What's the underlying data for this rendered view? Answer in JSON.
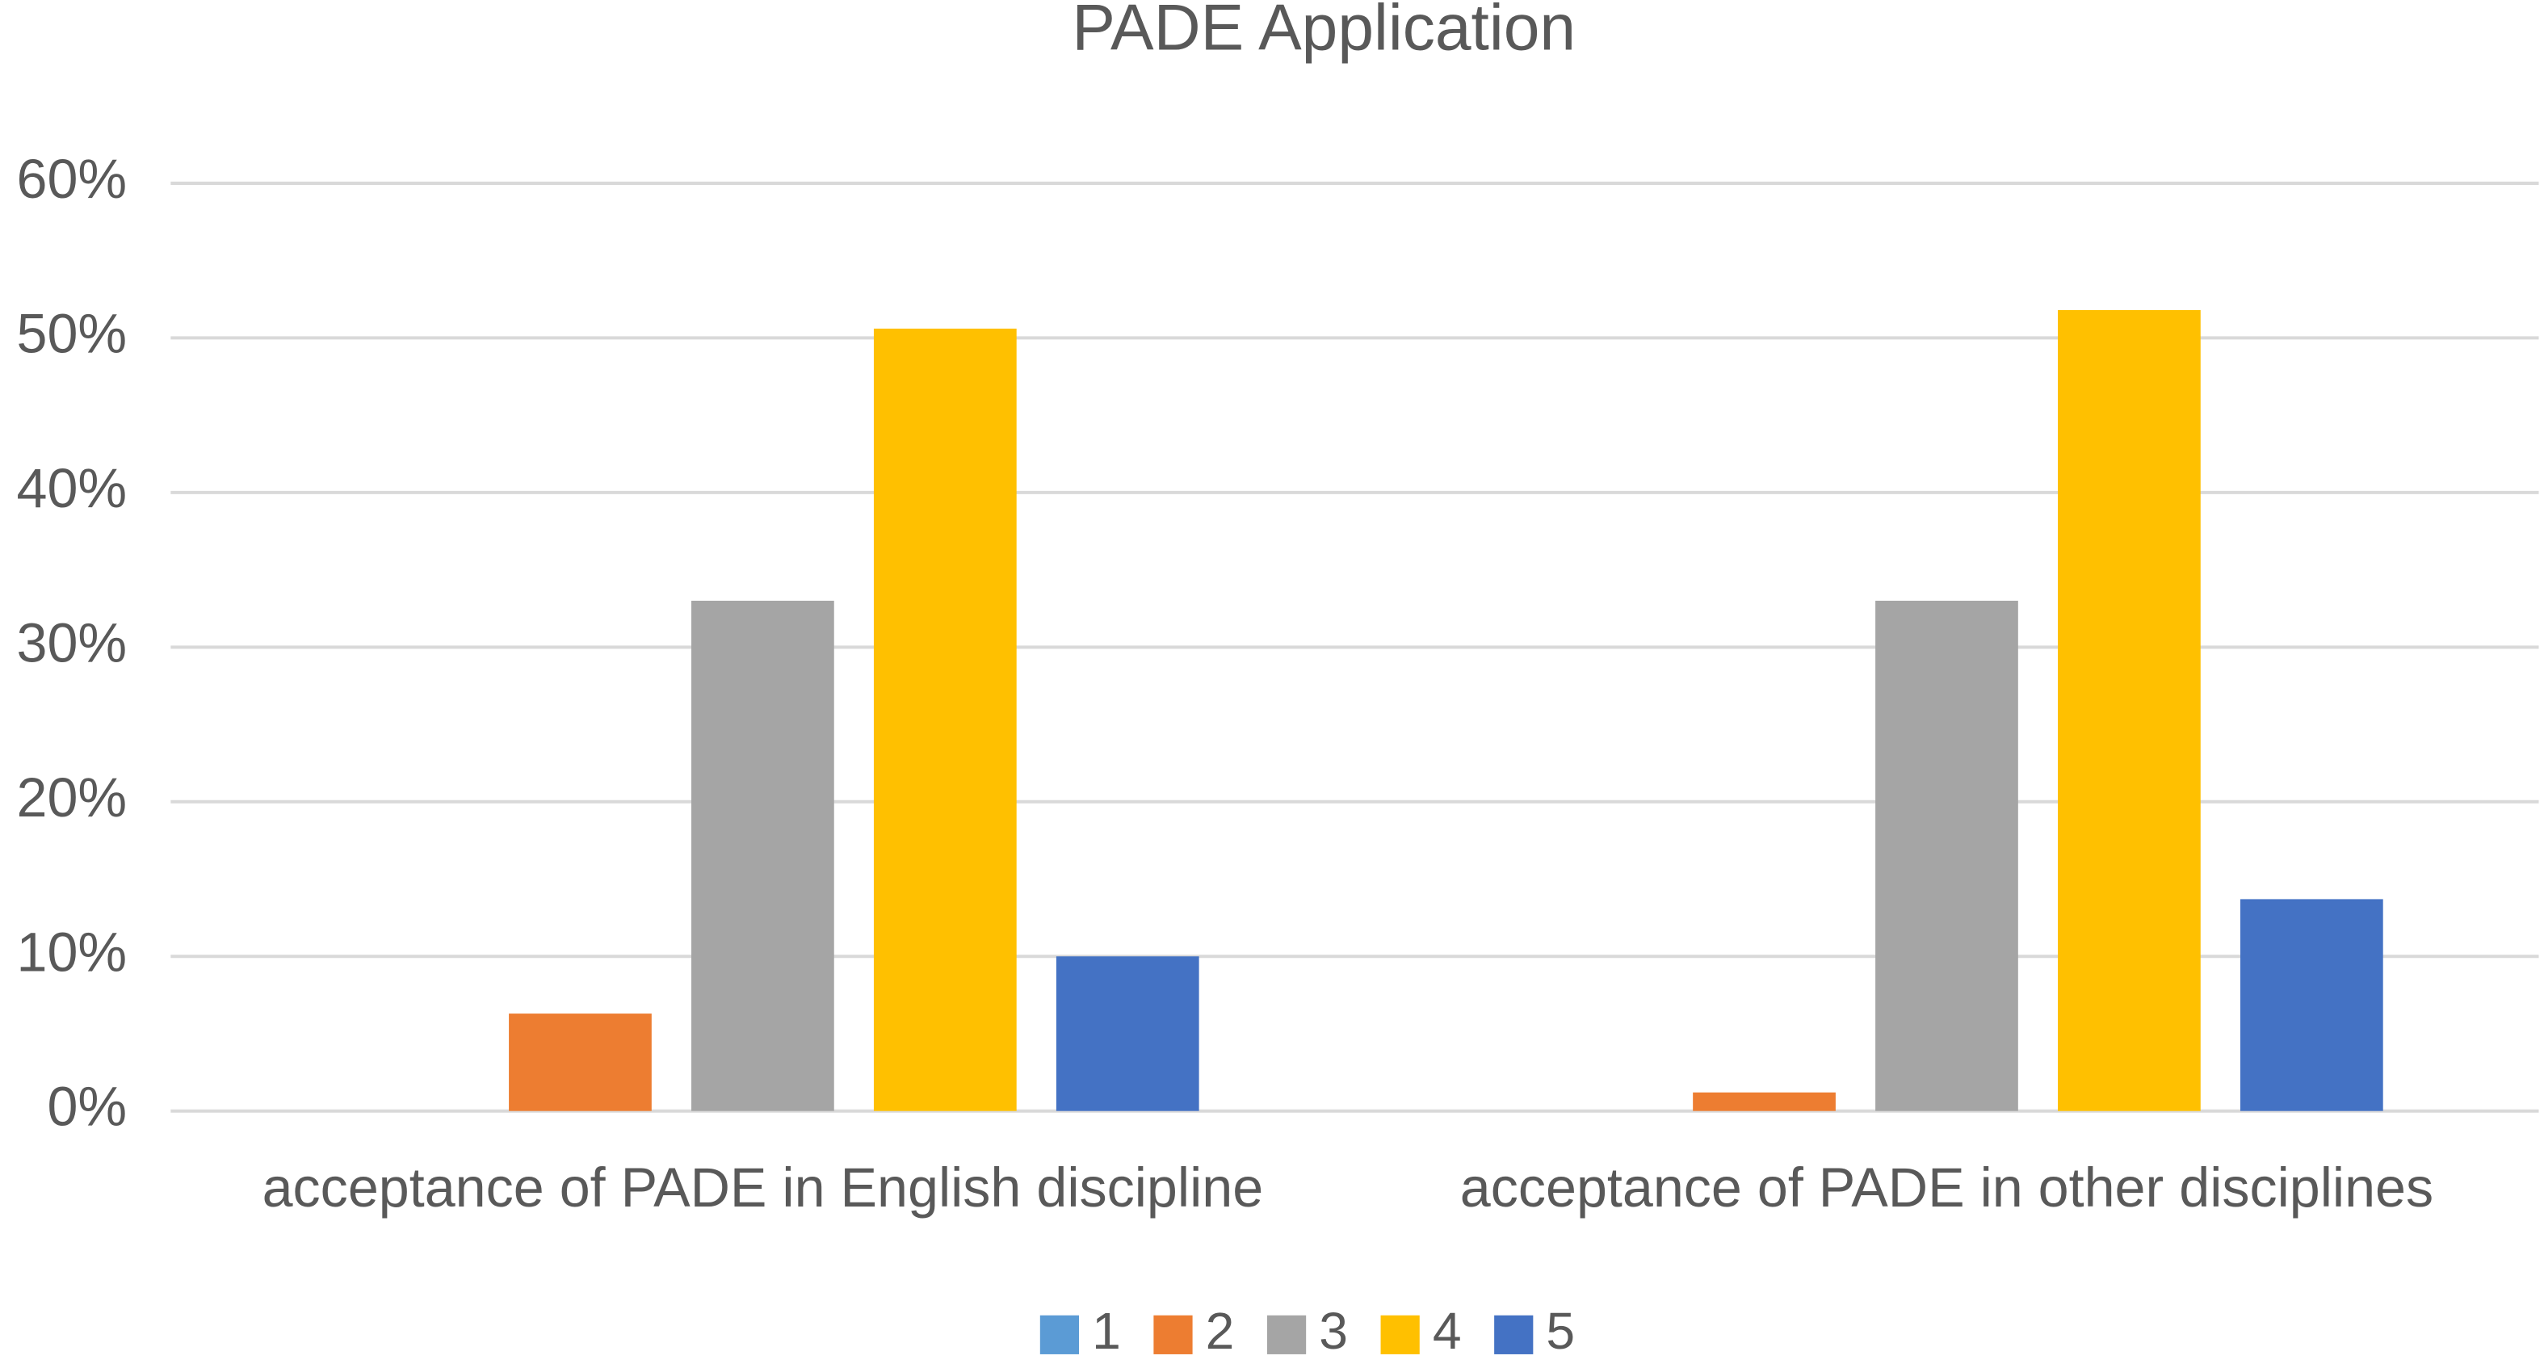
{
  "chart_data": {
    "type": "bar",
    "title": "PADE Application",
    "categories": [
      "acceptance of PADE in English discipline",
      "acceptance of PADE in other disciplines"
    ],
    "series": [
      {
        "name": "1",
        "color": "#5b9bd5",
        "values": [
          0,
          0
        ]
      },
      {
        "name": "2",
        "color": "#ed7d31",
        "values": [
          6.3,
          1.2
        ]
      },
      {
        "name": "3",
        "color": "#a5a5a5",
        "values": [
          33,
          33
        ]
      },
      {
        "name": "4",
        "color": "#ffc000",
        "values": [
          50.6,
          51.8
        ]
      },
      {
        "name": "5",
        "color": "#4472c4",
        "values": [
          10,
          13.7
        ]
      }
    ],
    "ylim": [
      0,
      60
    ],
    "yticks": [
      {
        "value": 0,
        "label": "0%"
      },
      {
        "value": 10,
        "label": "10%"
      },
      {
        "value": 20,
        "label": "20%"
      },
      {
        "value": 30,
        "label": "30%"
      },
      {
        "value": 40,
        "label": "40%"
      },
      {
        "value": 50,
        "label": "50%"
      },
      {
        "value": 60,
        "label": "60%"
      }
    ],
    "grid": true,
    "legend": "bottom"
  }
}
